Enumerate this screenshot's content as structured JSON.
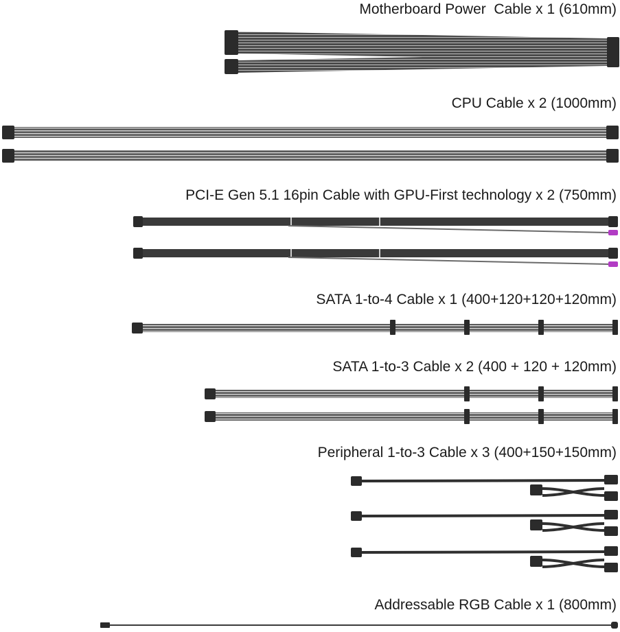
{
  "cables": [
    {
      "id": "motherboard",
      "label": "Motherboard Power  Cable x 1 (610mm)"
    },
    {
      "id": "cpu",
      "label": "CPU Cable x 2 (1000mm)"
    },
    {
      "id": "pcie",
      "label": "PCI-E Gen 5.1 16pin Cable with GPU-First technology x 2 (750mm)"
    },
    {
      "id": "sata4",
      "label": "SATA 1-to-4 Cable x 1 (400+120+120+120mm)"
    },
    {
      "id": "sata3",
      "label": "SATA 1-to-3 Cable x 2 (400 + 120 + 120mm)"
    },
    {
      "id": "peripheral",
      "label": "Peripheral 1-to-3 Cable x 3 (400+150+150mm)"
    },
    {
      "id": "argb",
      "label": "Addressable RGB Cable x 1 (800mm)"
    }
  ],
  "colors": {
    "connector": "#2b2b2b",
    "sleeve_dark": "#3a3a3a",
    "sleeve_light": "#8a8a8a",
    "wire_highlight": "#d0d0d0",
    "accent_connector": "#b23cc4"
  }
}
